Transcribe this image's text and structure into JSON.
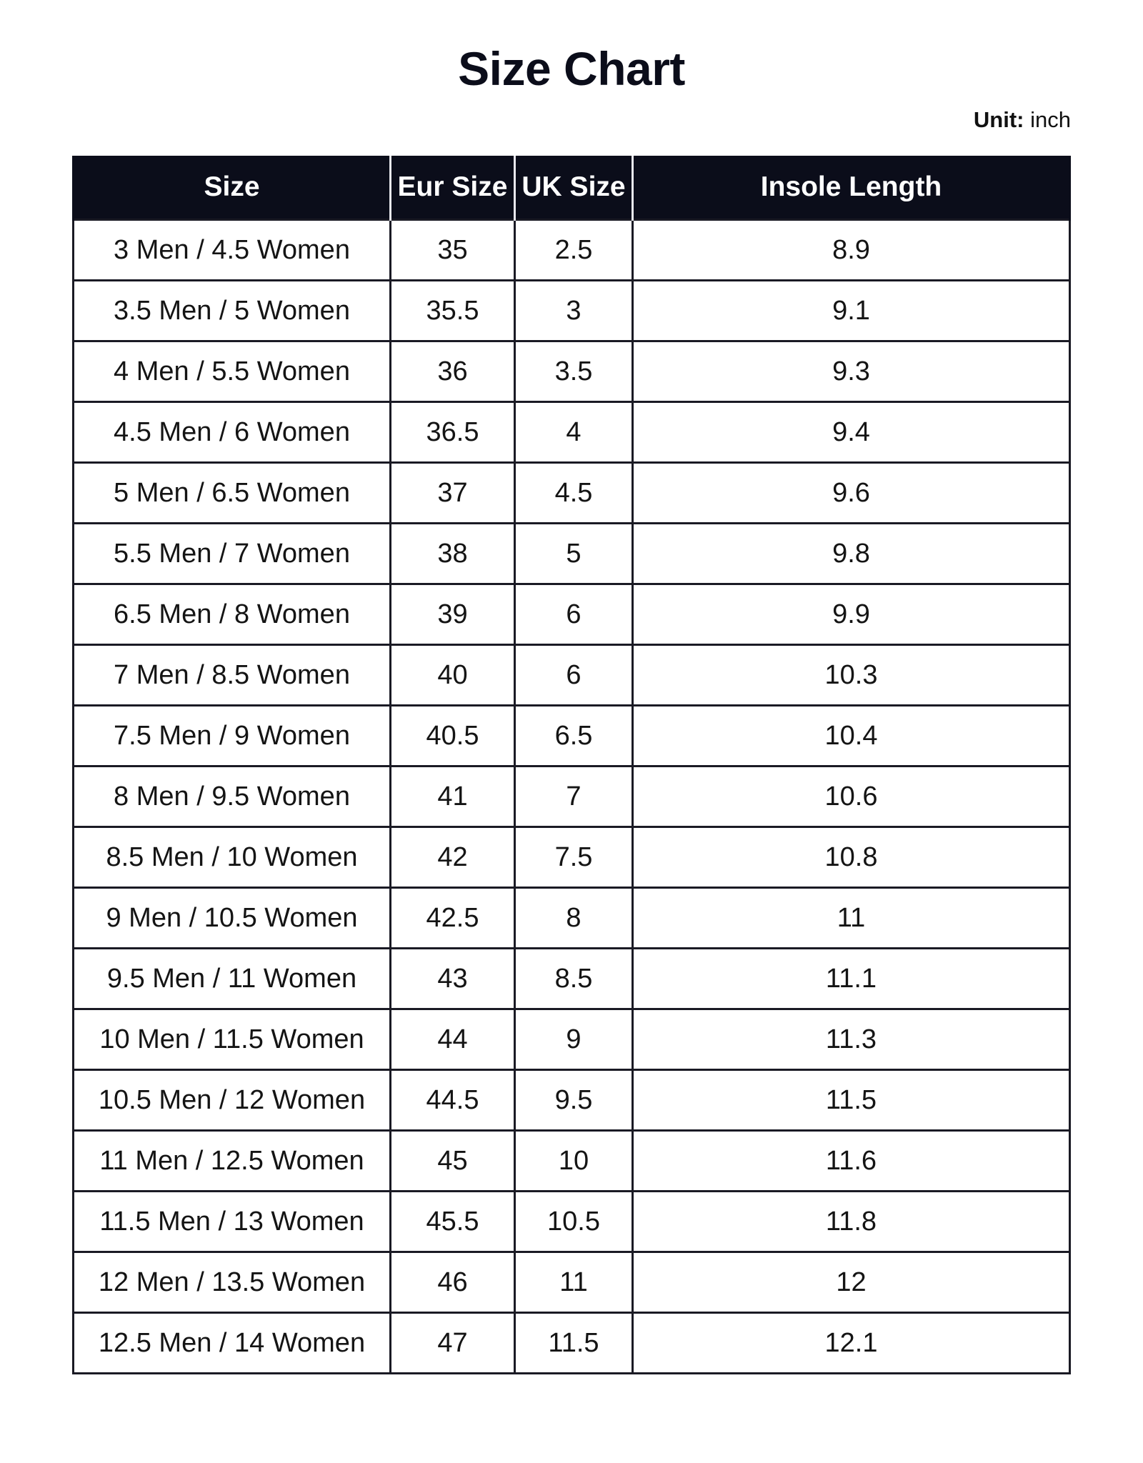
{
  "title": "Size Chart",
  "unit": {
    "label": "Unit:",
    "value": "inch"
  },
  "colors": {
    "header_bg": "#0b0d1a",
    "header_text": "#ffffff"
  },
  "columns": [
    "Size",
    "Eur Size",
    "UK Size",
    "Insole Length"
  ],
  "rows": [
    [
      "3 Men / 4.5 Women",
      "35",
      "2.5",
      "8.9"
    ],
    [
      "3.5 Men / 5 Women",
      "35.5",
      "3",
      "9.1"
    ],
    [
      "4 Men / 5.5 Women",
      "36",
      "3.5",
      "9.3"
    ],
    [
      "4.5 Men / 6 Women",
      "36.5",
      "4",
      "9.4"
    ],
    [
      "5 Men / 6.5 Women",
      "37",
      "4.5",
      "9.6"
    ],
    [
      "5.5 Men / 7 Women",
      "38",
      "5",
      "9.8"
    ],
    [
      "6.5 Men / 8 Women",
      "39",
      "6",
      "9.9"
    ],
    [
      "7 Men / 8.5 Women",
      "40",
      "6",
      "10.3"
    ],
    [
      "7.5 Men / 9 Women",
      "40.5",
      "6.5",
      "10.4"
    ],
    [
      "8 Men / 9.5 Women",
      "41",
      "7",
      "10.6"
    ],
    [
      "8.5 Men / 10 Women",
      "42",
      "7.5",
      "10.8"
    ],
    [
      "9 Men / 10.5 Women",
      "42.5",
      "8",
      "11"
    ],
    [
      "9.5 Men / 11 Women",
      "43",
      "8.5",
      "11.1"
    ],
    [
      "10 Men / 11.5 Women",
      "44",
      "9",
      "11.3"
    ],
    [
      "10.5 Men / 12 Women",
      "44.5",
      "9.5",
      "11.5"
    ],
    [
      "11 Men / 12.5 Women",
      "45",
      "10",
      "11.6"
    ],
    [
      "11.5 Men / 13 Women",
      "45.5",
      "10.5",
      "11.8"
    ],
    [
      "12 Men / 13.5 Women",
      "46",
      "11",
      "12"
    ],
    [
      "12.5 Men / 14 Women",
      "47",
      "11.5",
      "12.1"
    ]
  ]
}
